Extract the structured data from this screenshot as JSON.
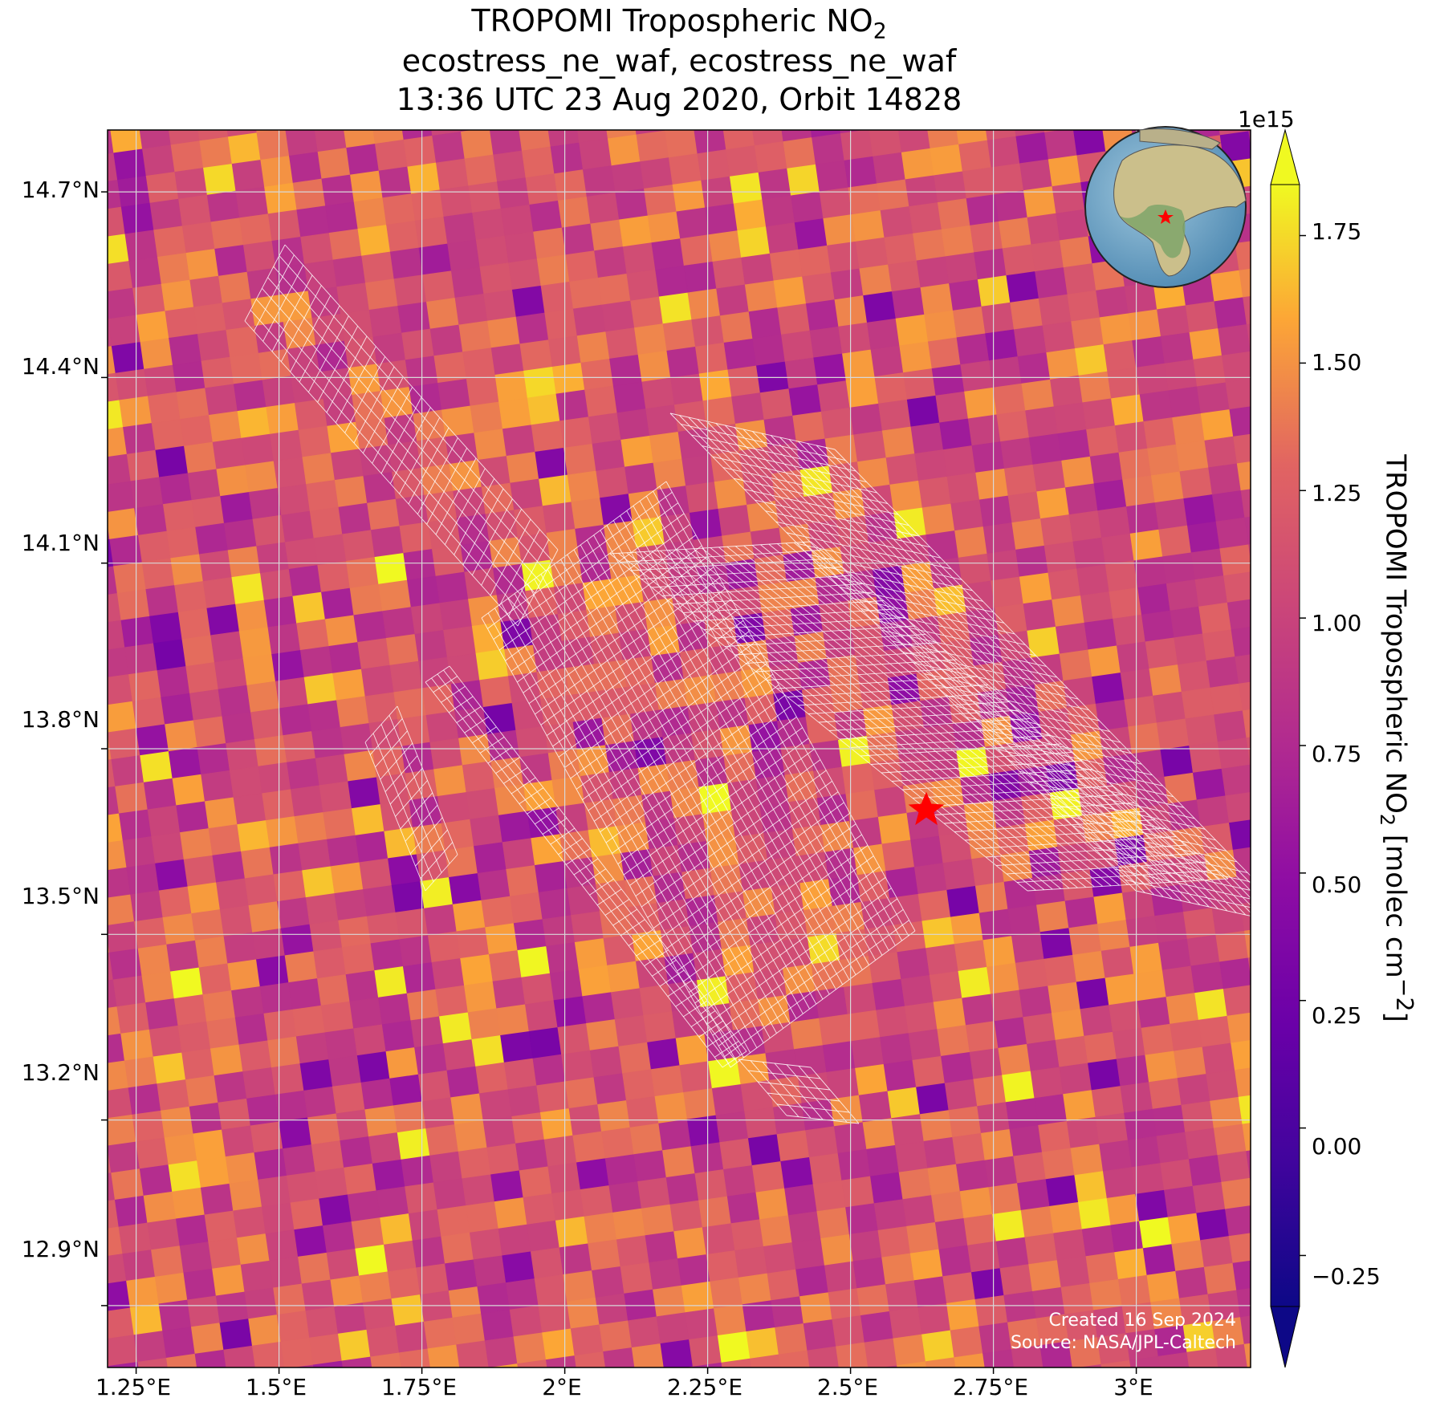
{
  "header": {
    "title_main": "TROPOMI Tropospheric NO",
    "title_sub": "2",
    "line2": "ecostress_ne_waf, ecostress_ne_waf",
    "line3": "13:36 UTC 23 Aug 2020, Orbit 14828"
  },
  "axes": {
    "y_ticks": [
      "14.7°N",
      "14.4°N",
      "14.1°N",
      "13.8°N",
      "13.5°N",
      "13.2°N",
      "12.9°N"
    ],
    "x_ticks": [
      "1.25°E",
      "1.5°E",
      "1.75°E",
      "2°E",
      "2.25°E",
      "2.5°E",
      "2.75°E",
      "3°E"
    ]
  },
  "colorbar": {
    "exponent": "1e15",
    "ticks": [
      "−0.25",
      "0.00",
      "0.25",
      "0.50",
      "0.75",
      "1.00",
      "1.25",
      "1.50",
      "1.75"
    ],
    "label_main": "TROPOMI Tropospheric NO",
    "label_sub": "2",
    "label_units": " [molec cm",
    "label_exp": "−2",
    "label_end": "]",
    "colormap": "plasma",
    "range": [
      -0.35,
      1.85
    ],
    "extend": "both"
  },
  "credit": {
    "created": "Created 16 Sep 2024",
    "source": "Source: NASA/JPL-Caltech"
  },
  "site_marker": {
    "lon": 2.63,
    "lat": 13.65,
    "color": "#ff0000",
    "shape": "star"
  },
  "inset": {
    "content": "globe centered on Africa with red star at site"
  },
  "chart_data": {
    "type": "heatmap",
    "title": "TROPOMI Tropospheric NO2",
    "xlabel": "",
    "ylabel": "",
    "x_range_deg_e": [
      1.2,
      3.2
    ],
    "y_range_deg_n": [
      12.8,
      14.8
    ],
    "value_range": [
      -0.35,
      1.85
    ],
    "value_scale": "1e15",
    "units": "molec cm^-2",
    "grid": true,
    "overlay": "ECOSTRESS footprint grid (white outline)"
  }
}
